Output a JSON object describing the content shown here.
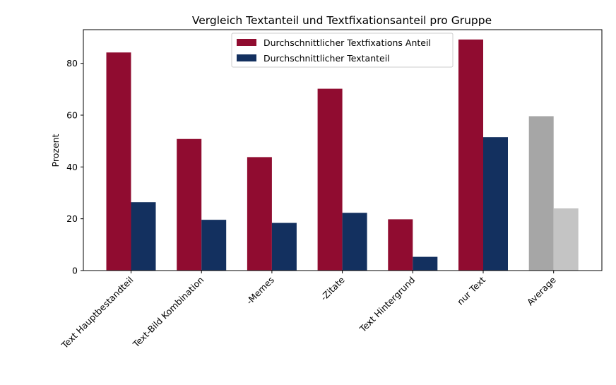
{
  "chart_data": {
    "type": "bar",
    "title": "Vergleich Textanteil und Textfixationsanteil pro Gruppe",
    "xlabel": "",
    "ylabel": "Prozent",
    "ylim": [
      0,
      93
    ],
    "yticks": [
      0,
      20,
      40,
      60,
      80
    ],
    "categories": [
      "Text Hauptbestandteil",
      "Text-Bild Kombination",
      "-Memes",
      "-Zitate",
      "Text Hintergrund",
      "nur Text",
      "Average"
    ],
    "series": [
      {
        "name": "Durchschnittlicher Textfixations Anteil",
        "color": "#900C30",
        "values": [
          84.2,
          50.8,
          43.8,
          70.2,
          19.8,
          89.2,
          59.6
        ]
      },
      {
        "name": "Durchschnittlicher Textanteil",
        "color": "#13305F",
        "values": [
          26.4,
          19.6,
          18.4,
          22.3,
          5.3,
          51.5,
          24.0
        ]
      }
    ],
    "highlight": {
      "category": "Average",
      "colors": [
        "#A6A6A6",
        "#C4C4C4"
      ]
    },
    "legend_position": "top-center",
    "grid": false
  }
}
